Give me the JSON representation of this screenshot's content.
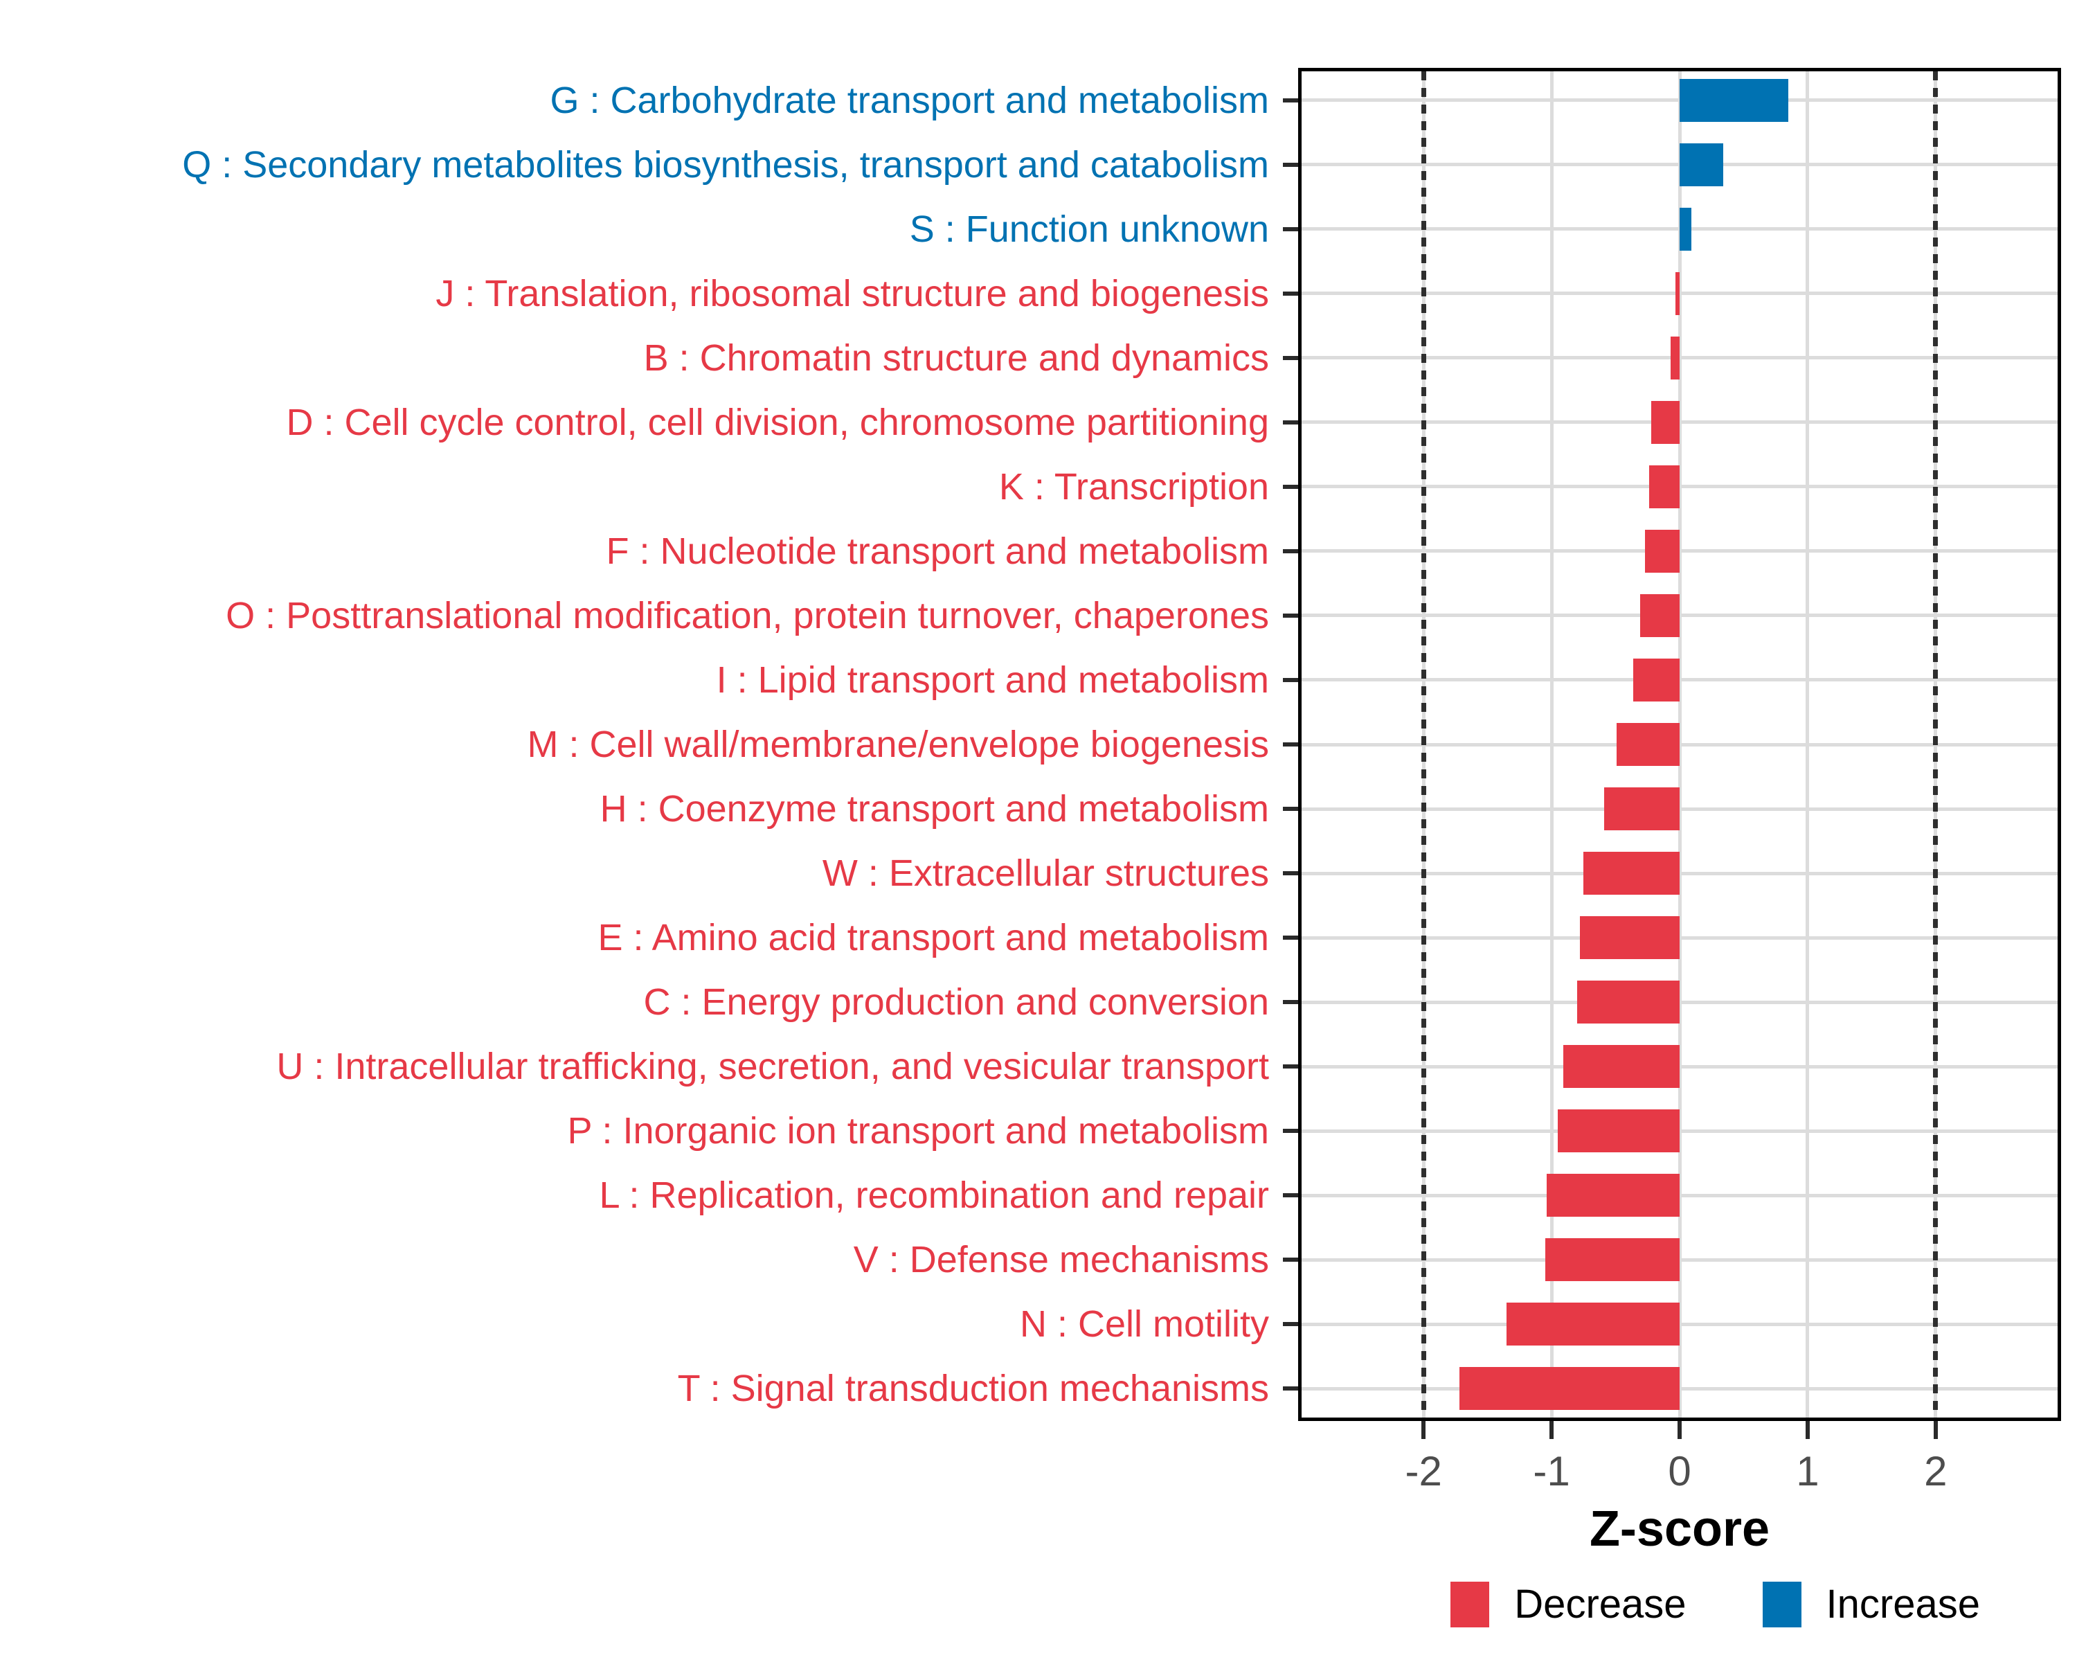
{
  "chart_data": {
    "type": "bar",
    "orientation": "horizontal",
    "title": "",
    "xlabel": "Z-score",
    "ylabel": "",
    "xlim": [
      -2.98,
      2.98
    ],
    "grid": "major-only",
    "x_ticks": [
      {
        "value": -2,
        "label": "-2"
      },
      {
        "value": -1,
        "label": "-1"
      },
      {
        "value": 0,
        "label": "0"
      },
      {
        "value": 1,
        "label": "1"
      },
      {
        "value": 2,
        "label": "2"
      }
    ],
    "dotted_reference_lines": [
      -2,
      2
    ],
    "colors": {
      "Increase": "#0072B2",
      "Decrease": "#E63946",
      "gridline": "#DCDCDC",
      "dotted_line": "#2E2E2E",
      "tick": "#2A2A2A",
      "tick_label": "#4D4D4D",
      "panel_border": "#000000"
    },
    "categories": [
      {
        "label": "G : Carbohydrate transport and metabolism",
        "value": 0.85,
        "direction": "Increase"
      },
      {
        "label": "Q : Secondary metabolites biosynthesis, transport and catabolism",
        "value": 0.34,
        "direction": "Increase"
      },
      {
        "label": "S : Function unknown",
        "value": 0.09,
        "direction": "Increase"
      },
      {
        "label": "J : Translation, ribosomal structure and biogenesis",
        "value": -0.03,
        "direction": "Decrease"
      },
      {
        "label": "B : Chromatin structure and dynamics",
        "value": -0.07,
        "direction": "Decrease"
      },
      {
        "label": "D : Cell cycle control, cell division, chromosome partitioning",
        "value": -0.22,
        "direction": "Decrease"
      },
      {
        "label": "K : Transcription",
        "value": -0.24,
        "direction": "Decrease"
      },
      {
        "label": "F : Nucleotide transport and metabolism",
        "value": -0.27,
        "direction": "Decrease"
      },
      {
        "label": "O : Posttranslational modification, protein turnover, chaperones",
        "value": -0.31,
        "direction": "Decrease"
      },
      {
        "label": "I : Lipid transport and metabolism",
        "value": -0.36,
        "direction": "Decrease"
      },
      {
        "label": "M : Cell wall/membrane/envelope biogenesis",
        "value": -0.49,
        "direction": "Decrease"
      },
      {
        "label": "H : Coenzyme transport and metabolism",
        "value": -0.59,
        "direction": "Decrease"
      },
      {
        "label": "W : Extracellular structures",
        "value": -0.75,
        "direction": "Decrease"
      },
      {
        "label": "E : Amino acid transport and metabolism",
        "value": -0.78,
        "direction": "Decrease"
      },
      {
        "label": "C : Energy production and conversion",
        "value": -0.8,
        "direction": "Decrease"
      },
      {
        "label": "U : Intracellular trafficking, secretion, and vesicular transport",
        "value": -0.91,
        "direction": "Decrease"
      },
      {
        "label": "P : Inorganic ion transport and metabolism",
        "value": -0.95,
        "direction": "Decrease"
      },
      {
        "label": "L : Replication, recombination and repair",
        "value": -1.04,
        "direction": "Decrease"
      },
      {
        "label": "V : Defense mechanisms",
        "value": -1.05,
        "direction": "Decrease"
      },
      {
        "label": "N : Cell motility",
        "value": -1.35,
        "direction": "Decrease"
      },
      {
        "label": "T : Signal transduction mechanisms",
        "value": -1.72,
        "direction": "Decrease"
      }
    ],
    "legend": {
      "position": "bottom-right",
      "items": [
        {
          "label": "Decrease",
          "color_key": "Decrease"
        },
        {
          "label": "Increase",
          "color_key": "Increase"
        }
      ]
    }
  }
}
